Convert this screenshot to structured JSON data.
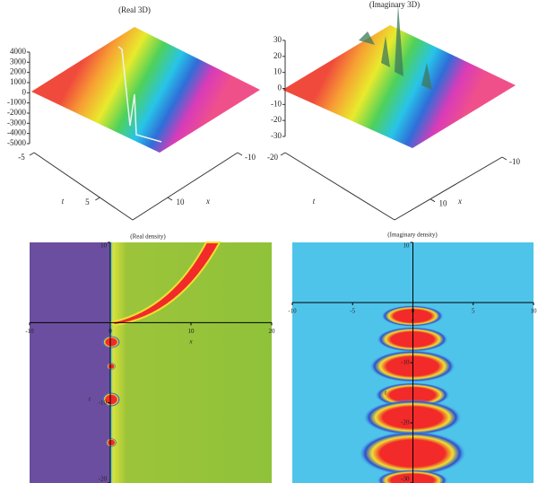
{
  "chart_data": [
    {
      "type": "surface3d",
      "title": "(Real 3D)",
      "zlim": [
        -5000,
        4000
      ],
      "zticks": [
        -5000,
        -4000,
        -3000,
        -2000,
        -1000,
        0,
        1000,
        2000,
        3000,
        4000
      ],
      "tlabel": "t",
      "tlim": [
        -5,
        10
      ],
      "tticks": [
        -5,
        5
      ],
      "xlabel": "x",
      "xlim": [
        -10,
        20
      ],
      "xticks": [
        -10,
        10
      ]
    },
    {
      "type": "surface3d",
      "title": "(Imaginary 3D)",
      "zlim": [
        -30,
        30
      ],
      "zticks": [
        -30,
        -20,
        -10,
        0,
        10,
        20,
        30
      ],
      "tlabel": "t",
      "tlim": [
        -20,
        10
      ],
      "tticks": [
        -20
      ],
      "xlabel": "x",
      "xlim": [
        -10,
        20
      ],
      "xticks": [
        -10,
        10
      ]
    },
    {
      "type": "density",
      "title": "(Real density)",
      "xlabel": "x",
      "ylabel": "t",
      "xlim": [
        -10,
        20
      ],
      "xticks": [
        -10,
        0,
        10,
        20
      ],
      "ylim": [
        -20,
        10
      ],
      "yticks": [
        10,
        -10,
        -20
      ]
    },
    {
      "type": "density",
      "title": "(Imaginary density)",
      "xlabel": "x",
      "ylabel": "t",
      "xlim": [
        -10,
        10
      ],
      "xticks": [
        -10,
        -5,
        0,
        5,
        10
      ],
      "ylim": [
        -30,
        10
      ],
      "yticks": [
        10,
        -10,
        -20,
        -30
      ]
    }
  ]
}
